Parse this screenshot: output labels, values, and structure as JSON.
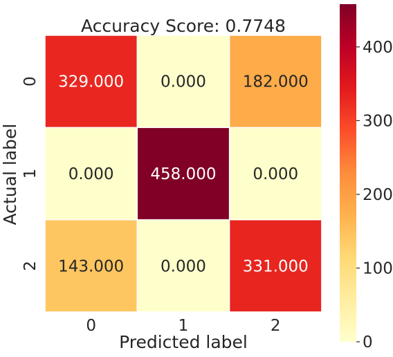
{
  "chart_data": {
    "type": "heatmap",
    "title": "Accuracy Score: 0.7748",
    "xlabel": "Predicted label",
    "ylabel": "Actual label",
    "x_categories": [
      "0",
      "1",
      "2"
    ],
    "y_categories": [
      "0",
      "1",
      "2"
    ],
    "values": [
      [
        329,
        0,
        182
      ],
      [
        0,
        458,
        0
      ],
      [
        143,
        0,
        331
      ]
    ],
    "cell_labels": [
      [
        "329.000",
        "0.000",
        "182.000"
      ],
      [
        "0.000",
        "458.000",
        "0.000"
      ],
      [
        "143.000",
        "0.000",
        "331.000"
      ]
    ],
    "colormap": "YlOrRd",
    "colorbar": {
      "range": [
        0,
        458
      ],
      "ticks": [
        0,
        100,
        200,
        300,
        400
      ],
      "tick_labels": [
        "0",
        "100",
        "200",
        "300",
        "400"
      ]
    }
  }
}
